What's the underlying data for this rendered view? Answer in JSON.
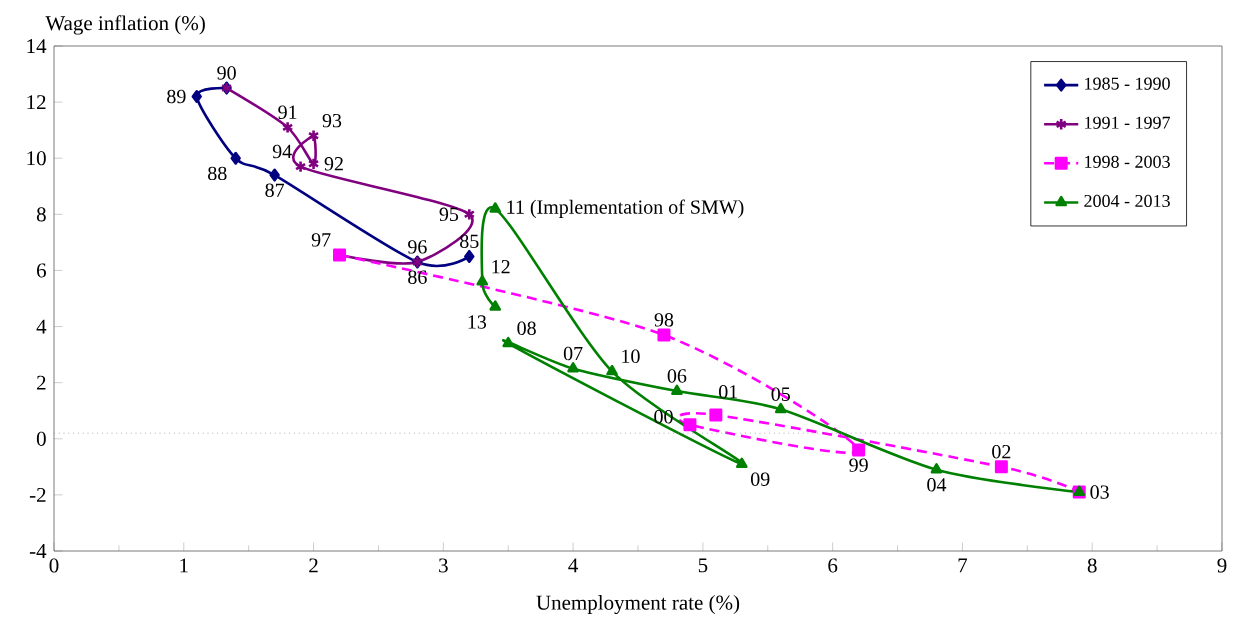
{
  "chart_data": {
    "type": "line",
    "xlabel": "Unemployment rate (%)",
    "ylabel": "Wage inflation (%)",
    "xlim": [
      0,
      9
    ],
    "ylim": [
      -4,
      14
    ],
    "xticks": [
      0,
      1,
      2,
      3,
      4,
      5,
      6,
      7,
      8,
      9
    ],
    "yticks": [
      -4,
      -2,
      0,
      2,
      4,
      6,
      8,
      10,
      12,
      14
    ],
    "grid": false,
    "legend": "top right",
    "series": [
      {
        "name": "1985 - 1990",
        "color": "#000080",
        "marker": "diamond",
        "line_style": "solid",
        "x": [
          3.2,
          2.8,
          1.7,
          1.4,
          1.1,
          1.33
        ],
        "values": [
          6.5,
          6.3,
          9.4,
          10.0,
          12.2,
          12.5
        ]
      },
      {
        "name": "1991 - 1997",
        "color": "#800080",
        "marker": "cross",
        "line_style": "solid",
        "x": [
          1.33,
          1.8,
          2.0,
          2.0,
          1.9,
          3.2,
          2.8,
          2.2
        ],
        "values": [
          12.5,
          11.1,
          9.8,
          10.8,
          9.7,
          8.0,
          6.3,
          6.55
        ]
      },
      {
        "name": "1998 - 2003",
        "color": "#ff00ff",
        "marker": "square",
        "line_style": "dashed",
        "x": [
          2.2,
          4.7,
          6.2,
          4.9,
          5.1,
          7.3,
          7.9
        ],
        "values": [
          6.55,
          3.7,
          -0.4,
          0.5,
          0.85,
          -1.0,
          -1.9
        ]
      },
      {
        "name": "2004 - 2013",
        "color": "#008000",
        "marker": "triangle",
        "line_style": "solid",
        "x": [
          7.9,
          6.8,
          5.6,
          4.8,
          4.0,
          3.5,
          5.3,
          4.3,
          3.4,
          3.3,
          3.4
        ],
        "values": [
          -1.9,
          -1.1,
          1.05,
          1.7,
          2.5,
          3.4,
          -0.9,
          2.4,
          8.2,
          5.6,
          4.7
        ]
      }
    ],
    "ref_lines": [
      {
        "axis": "y",
        "value": 0.2,
        "color": "#808080",
        "line_style": "dotted"
      }
    ],
    "annotations": [
      {
        "text": "85",
        "x": 3.2,
        "y": 6.5
      },
      {
        "text": "86",
        "x": 2.8,
        "y": 6.3
      },
      {
        "text": "87",
        "x": 1.7,
        "y": 9.4
      },
      {
        "text": "88",
        "x": 1.4,
        "y": 10.0
      },
      {
        "text": "89",
        "x": 1.1,
        "y": 12.2
      },
      {
        "text": "90",
        "x": 1.33,
        "y": 12.5
      },
      {
        "text": "91",
        "x": 1.8,
        "y": 11.1
      },
      {
        "text": "92",
        "x": 2.0,
        "y": 9.8
      },
      {
        "text": "93",
        "x": 2.0,
        "y": 10.8
      },
      {
        "text": "94",
        "x": 1.9,
        "y": 9.7
      },
      {
        "text": "95",
        "x": 3.2,
        "y": 8.0
      },
      {
        "text": "96",
        "x": 2.8,
        "y": 6.3
      },
      {
        "text": "97",
        "x": 2.2,
        "y": 6.55
      },
      {
        "text": "98",
        "x": 4.7,
        "y": 3.7
      },
      {
        "text": "99",
        "x": 6.2,
        "y": -0.4
      },
      {
        "text": "00",
        "x": 4.9,
        "y": 0.5
      },
      {
        "text": "01",
        "x": 5.1,
        "y": 0.85
      },
      {
        "text": "02",
        "x": 7.3,
        "y": -1.0
      },
      {
        "text": "03",
        "x": 7.9,
        "y": -1.9
      },
      {
        "text": "04",
        "x": 6.8,
        "y": -1.1
      },
      {
        "text": "05",
        "x": 5.6,
        "y": 1.05
      },
      {
        "text": "06",
        "x": 4.8,
        "y": 1.7
      },
      {
        "text": "07",
        "x": 4.0,
        "y": 2.5
      },
      {
        "text": "08",
        "x": 3.5,
        "y": 3.4
      },
      {
        "text": "09",
        "x": 5.3,
        "y": -0.9
      },
      {
        "text": "10",
        "x": 4.3,
        "y": 2.4
      },
      {
        "text": "11 (Implementation of SMW)",
        "x": 3.4,
        "y": 8.2
      },
      {
        "text": "12",
        "x": 3.3,
        "y": 5.6
      },
      {
        "text": "13",
        "x": 3.4,
        "y": 4.7
      }
    ]
  }
}
